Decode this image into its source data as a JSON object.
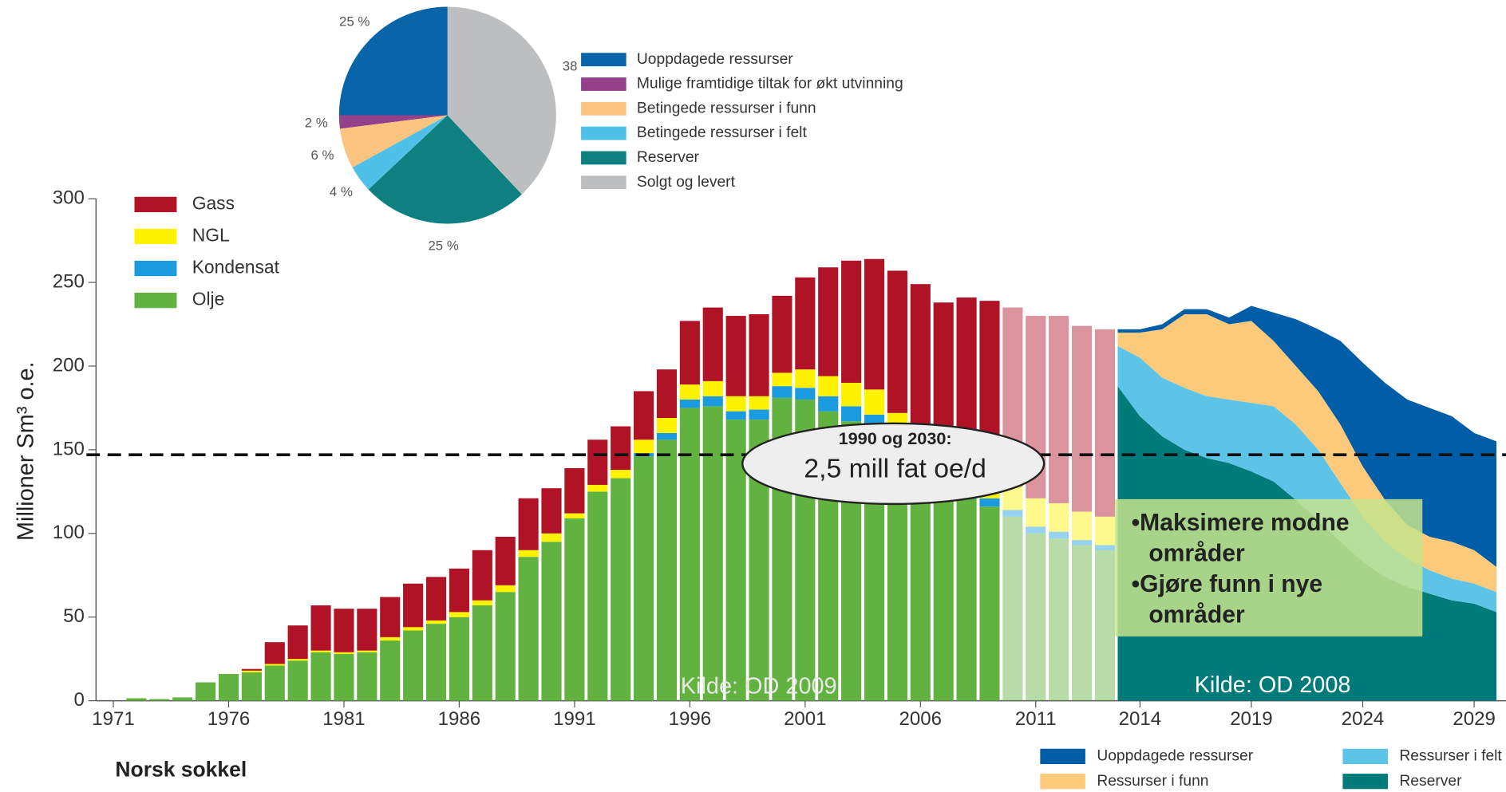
{
  "chart_data": [
    {
      "type": "pie",
      "labels": [
        "Uoppdagede ressurser",
        "Mulige framtidige tiltak for økt utvinning",
        "Betingede ressurser i funn",
        "Betingede ressurser i felt",
        "Reserver",
        "Solgt og levert"
      ],
      "values": [
        25,
        2,
        6,
        4,
        25,
        38
      ],
      "value_labels": [
        "25 %",
        "2 %",
        "6 %",
        "4 %",
        "25 %",
        "38"
      ],
      "colors": [
        "#0a64a8",
        "#94418c",
        "#fbc57f",
        "#4fc0e8",
        "#0f8080",
        "#bcbec0"
      ],
      "direction": "counterclockwise"
    },
    {
      "type": "bar",
      "stacked": true,
      "ylabel": "Millioner Sm³ o.e.",
      "x": [
        1972,
        1973,
        1974,
        1975,
        1976,
        1977,
        1978,
        1979,
        1980,
        1981,
        1982,
        1983,
        1984,
        1985,
        1986,
        1987,
        1988,
        1989,
        1990,
        1991,
        1992,
        1993,
        1994,
        1995,
        1996,
        1997,
        1998,
        1999,
        2000,
        2001,
        2002,
        2003,
        2004,
        2005,
        2006,
        2007,
        2008,
        2009,
        2010,
        2011,
        2012,
        2013,
        2014
      ],
      "series": [
        {
          "name": "Olje",
          "color": "#62b23f",
          "values": [
            1.5,
            1,
            2,
            11,
            16,
            17,
            21,
            24,
            29,
            28,
            29,
            36,
            42,
            46,
            50,
            57,
            65,
            86,
            95,
            109,
            125,
            133,
            146,
            156,
            175,
            176,
            168,
            168,
            181,
            180,
            173,
            167,
            162,
            150,
            139,
            128,
            122,
            116,
            110,
            100,
            97,
            93,
            90
          ]
        },
        {
          "name": "Kondensat",
          "color": "#1a9be0",
          "values": [
            0,
            0,
            0,
            0,
            0,
            0,
            0,
            0,
            0,
            0,
            0,
            0,
            0,
            0,
            0,
            0,
            0,
            0,
            0,
            0,
            0,
            0,
            2,
            4,
            5,
            6,
            5,
            6,
            7,
            7,
            9,
            9,
            9,
            8,
            7,
            6,
            6,
            5,
            4,
            4,
            4,
            3,
            3
          ]
        },
        {
          "name": "NGL",
          "color": "#fff200",
          "values": [
            0,
            0,
            0,
            0,
            0,
            1,
            1,
            1,
            1,
            1,
            1,
            2,
            2,
            2,
            3,
            3,
            4,
            4,
            5,
            3,
            4,
            5,
            8,
            9,
            9,
            9,
            9,
            8,
            8,
            11,
            12,
            14,
            15,
            14,
            14,
            14,
            14,
            14,
            14,
            17,
            17,
            17,
            17
          ]
        },
        {
          "name": "Gass",
          "color": "#b01226",
          "values": [
            0,
            0,
            0,
            0,
            0,
            1,
            13,
            20,
            27,
            26,
            25,
            24,
            26,
            26,
            26,
            30,
            29,
            31,
            27,
            27,
            27,
            26,
            29,
            29,
            38,
            44,
            48,
            49,
            46,
            55,
            65,
            73,
            78,
            85,
            89,
            90,
            99,
            104,
            107,
            109,
            112,
            111,
            112
          ]
        }
      ],
      "forecast_from": 2010,
      "xlim": [
        1970.25,
        2014.4
      ],
      "xticks": [
        1971,
        1976,
        1981,
        1986,
        1991,
        1996,
        2001,
        2006,
        2011
      ],
      "ylim": [
        0,
        300
      ],
      "yticks": [
        0,
        50,
        100,
        150,
        200,
        250,
        300
      ],
      "reference_line": 147,
      "source": "Kilde: OD 2009"
    },
    {
      "type": "area",
      "stacked": true,
      "x": [
        2013,
        2014,
        2015,
        2016,
        2017,
        2018,
        2019,
        2020,
        2021,
        2022,
        2023,
        2024,
        2025,
        2026,
        2027,
        2028,
        2029,
        2030
      ],
      "series": [
        {
          "name": "Reserver",
          "color": "#007b7a",
          "values": [
            188,
            170,
            158,
            150,
            145,
            142,
            137,
            131,
            120,
            108,
            95,
            83,
            74,
            68,
            64,
            60,
            58,
            53
          ]
        },
        {
          "name": "Ressurser i felt",
          "color": "#5dc4e8",
          "values": [
            24,
            35,
            35,
            37,
            37,
            38,
            41,
            45,
            45,
            42,
            35,
            27,
            21,
            17,
            14,
            13,
            12,
            12
          ]
        },
        {
          "name": "Ressurser i funn",
          "color": "#fdc97a",
          "values": [
            8,
            15,
            29,
            44,
            49,
            45,
            49,
            39,
            35,
            35,
            35,
            30,
            25,
            20,
            20,
            22,
            20,
            15
          ]
        },
        {
          "name": "Uoppdagede ressurser",
          "color": "#005ea8",
          "values": [
            2,
            2,
            3,
            3,
            3,
            4,
            9,
            17,
            28,
            37,
            50,
            62,
            70,
            75,
            77,
            75,
            70,
            75
          ]
        }
      ],
      "xlim": [
        2012.84,
        2030.43
      ],
      "xticks": [
        2014,
        2019,
        2024,
        2029
      ],
      "ylim": [
        0,
        300
      ],
      "source": "Kilde: OD 2008"
    }
  ],
  "annotations": {
    "callout_title": "1990 og 2030:",
    "callout_text": "2,5 mill fat oe/d",
    "bullets": [
      "•Maksimere modne",
      "områder",
      "•Gjøre funn i nye",
      "områder"
    ],
    "footer": "Norsk sokkel"
  }
}
